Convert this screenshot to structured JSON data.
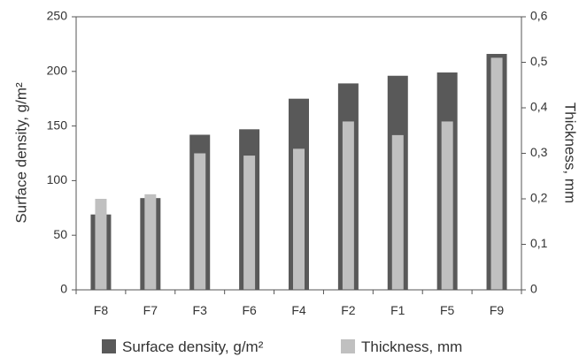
{
  "chart_data": {
    "type": "bar",
    "title": "",
    "categories": [
      "F8",
      "F7",
      "F3",
      "F6",
      "F4",
      "F2",
      "F1",
      "F5",
      "F9"
    ],
    "series": [
      {
        "name": "Surface density, g/m²",
        "axis": "left",
        "color": "#595959",
        "values": [
          69,
          84,
          142,
          147,
          175,
          189,
          196,
          199,
          216
        ]
      },
      {
        "name": "Thickness, mm",
        "axis": "right",
        "color": "#c0c0c0",
        "values": [
          0.2,
          0.21,
          0.3,
          0.295,
          0.31,
          0.37,
          0.34,
          0.37,
          0.51
        ]
      }
    ],
    "y_left": {
      "label": "Surface density, g/m²",
      "ylim": [
        0,
        250
      ],
      "ticks": [
        "0",
        "50",
        "100",
        "150",
        "200",
        "250"
      ]
    },
    "y_right": {
      "label": "Thickness, mm",
      "ylim": [
        0,
        0.6
      ],
      "ticks": [
        "0",
        "0,1",
        "0,2",
        "0,3",
        "0,4",
        "0,5",
        "0,6"
      ]
    },
    "grid": false,
    "legend_position": "bottom"
  }
}
